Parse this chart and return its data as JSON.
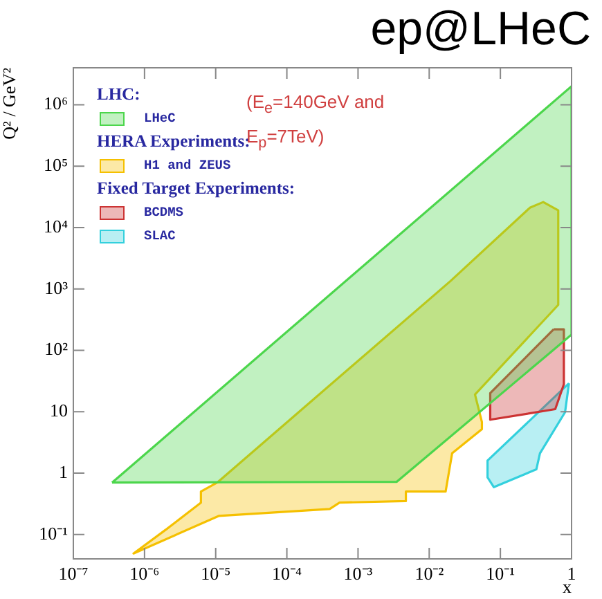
{
  "chart_data": {
    "type": "area",
    "title": "ep@LHeC",
    "xlabel": "x",
    "ylabel": "Q² / GeV²",
    "log": "xy",
    "grid": false,
    "legend": "top left",
    "marker": "none",
    "annotations": [
      "LHC:",
      "HERA Experiments:",
      "Fixed Target Experiments:",
      "(E$_{e}$=140GeV and E$_{p}$=7TeV)"
    ],
    "xlim": [
      1e-07,
      1
    ],
    "ylim": [
      0.04,
      4000000
    ],
    "xticks": [
      {
        "value": 1e-07,
        "label": "10⁻⁷"
      },
      {
        "value": 1e-06,
        "label": "10⁻⁶"
      },
      {
        "value": 1e-05,
        "label": "10⁻⁵"
      },
      {
        "value": 0.0001,
        "label": "10⁻⁴"
      },
      {
        "value": 0.001,
        "label": "10⁻³"
      },
      {
        "value": 0.01,
        "label": "10⁻²"
      },
      {
        "value": 0.1,
        "label": "10⁻¹"
      },
      1
    ],
    "yticks": [
      {
        "value": 0.1,
        "label": "10⁻¹"
      },
      1,
      10,
      {
        "value": 100,
        "label": "10²"
      },
      {
        "value": 1000,
        "label": "10³"
      },
      {
        "value": 10000,
        "label": "10⁴"
      },
      {
        "value": 100000,
        "label": "10⁵"
      },
      {
        "value": 1000000,
        "label": "10⁶"
      }
    ],
    "series": [
      {
        "name": "LHeC",
        "color": "#4cd64c",
        "x": [
          3.5e-07,
          1,
          1,
          0.0035
        ],
        "values": [
          0.7,
          2000000,
          180,
          0.72
        ]
      },
      {
        "name": "H1 and ZEUS",
        "color": "#f5c000",
        "x": [
          1.05e-05,
          0.02,
          0.26,
          0.4,
          0.65,
          0.65,
          0.044,
          0.055,
          0.055,
          0.021,
          0.017,
          0.0047,
          0.0047,
          0.00055,
          0.0004,
          1.1e-05,
          7e-07,
          2e-06,
          6.2e-06,
          6.2e-06
        ],
        "values": [
          0.7,
          1350,
          21000,
          26000,
          19000,
          550,
          19,
          6.8,
          5.2,
          2.1,
          0.5,
          0.5,
          0.35,
          0.33,
          0.26,
          0.2,
          0.049,
          0.12,
          0.33,
          0.5
        ]
      },
      {
        "name": "BCDMS",
        "color": "#cc3333",
        "x": [
          0.56,
          0.78,
          0.78,
          0.59,
          0.072,
          0.072
        ],
        "values": [
          220,
          220,
          28,
          11,
          7.4,
          20
        ]
      },
      {
        "name": "SLAC",
        "color": "#33d0dd",
        "x": [
          0.92,
          0.81,
          0.36,
          0.32,
          0.081,
          0.066,
          0.066
        ],
        "values": [
          29,
          9.8,
          2.1,
          1.15,
          0.59,
          0.85,
          1.6
        ]
      }
    ]
  }
}
